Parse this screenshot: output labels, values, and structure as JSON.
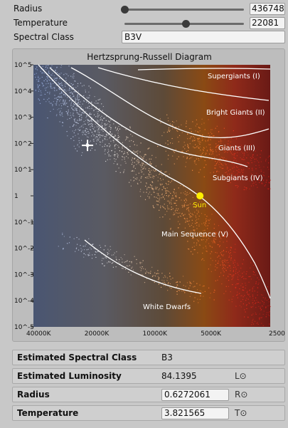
{
  "controls": {
    "radius": {
      "label": "Radius",
      "value": "436748",
      "slider_fraction": 0.0
    },
    "temperature": {
      "label": "Temperature",
      "value": "22081",
      "slider_fraction": 0.51
    },
    "spectral_class": {
      "label": "Spectral Class",
      "value": "B3V"
    }
  },
  "chart_data": {
    "type": "scatter",
    "title": "Hertzsprung-Russell Diagram",
    "x_tick_labels": [
      "40000K",
      "20000K",
      "10000K",
      "5000K",
      "2500"
    ],
    "y_tick_labels": [
      "10^5",
      "10^4",
      "10^3",
      "10^2",
      "10^1",
      "1",
      "10^-1",
      "10^-2",
      "10^-3",
      "10^-4",
      "10^-5"
    ],
    "x_scale": "log, reversed (temperature)",
    "y_scale": "log (luminosity)",
    "regions": [
      "Supergiants (I)",
      "Bright Giants (II)",
      "Giants (III)",
      "Subgiants (IV)",
      "Main Sequence (V)",
      "White Dwarfs"
    ],
    "sun_label": "Sun",
    "sun": {
      "temperature_K": 5778,
      "luminosity": 1
    },
    "selected_star": {
      "temperature_K": 22081,
      "luminosity": 84.1395
    },
    "colors": {
      "hot": "#6d8fc8",
      "cool": "#d8301c",
      "sun": "#ffee00"
    }
  },
  "info": {
    "spectral": {
      "label": "Estimated Spectral Class",
      "value": "B3"
    },
    "luminosity": {
      "label": "Estimated Luminosity",
      "value": "84.1395",
      "unit": "L⊙"
    },
    "radius": {
      "label": "Radius",
      "value": "0.6272061",
      "unit": "R⊙"
    },
    "temperature": {
      "label": "Temperature",
      "value": "3.821565",
      "unit": "T⊙"
    }
  }
}
